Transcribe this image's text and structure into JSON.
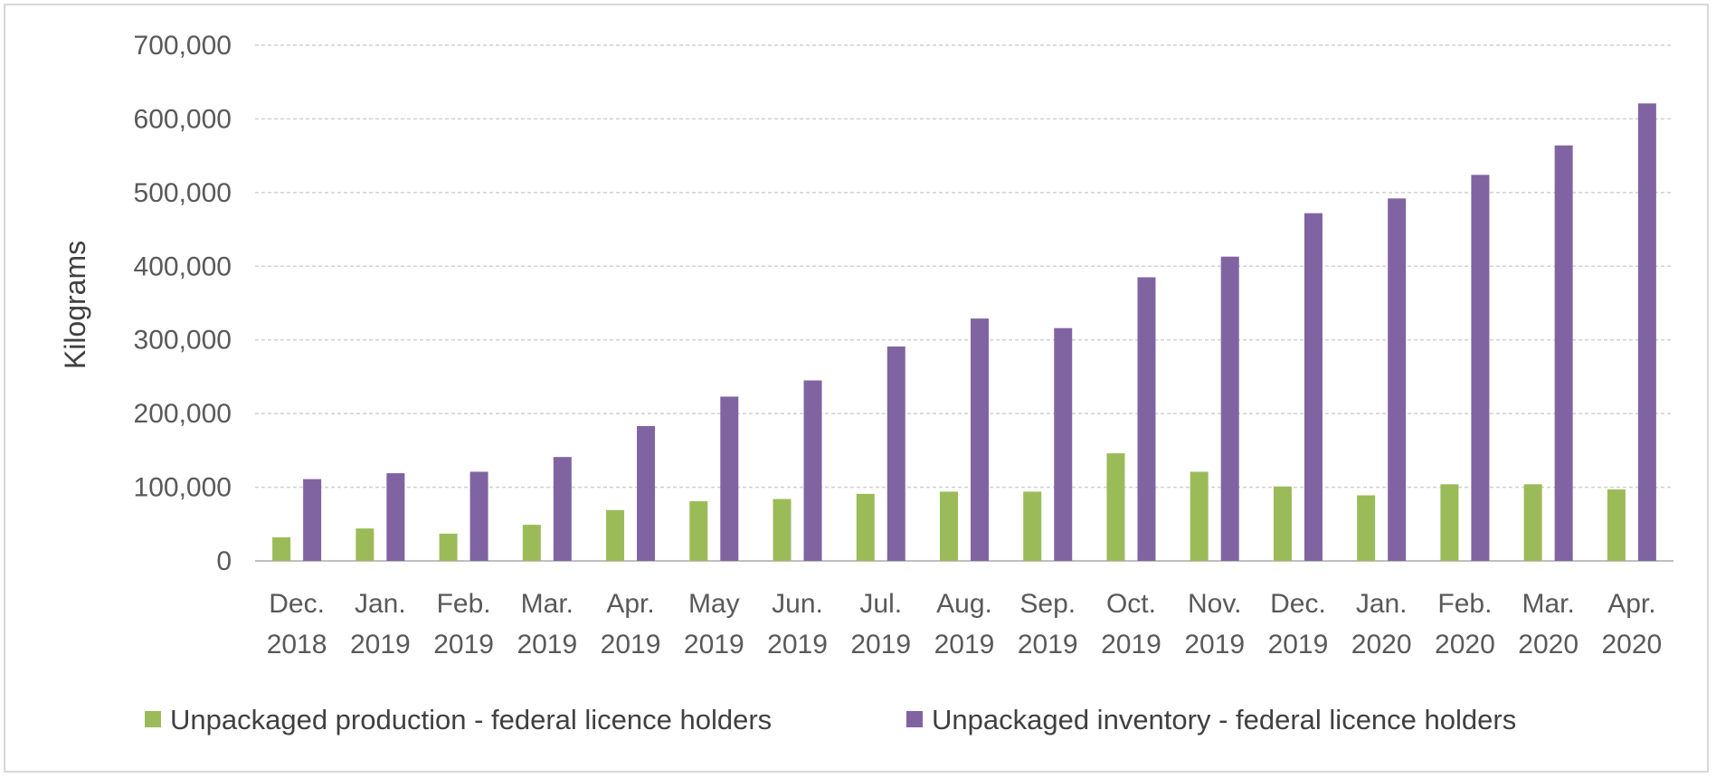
{
  "chart_data": {
    "type": "bar",
    "title": "",
    "xlabel": "",
    "ylabel": "Kilograms",
    "ylim": [
      0,
      700000
    ],
    "yticks": [
      0,
      100000,
      200000,
      300000,
      400000,
      500000,
      600000,
      700000
    ],
    "ytick_labels": [
      "0",
      "100,000",
      "200,000",
      "300,000",
      "400,000",
      "500,000",
      "600,000",
      "700,000"
    ],
    "grid": "horizontal dashed",
    "legend_position": "bottom",
    "categories": [
      [
        "Dec.",
        "2018"
      ],
      [
        "Jan.",
        "2019"
      ],
      [
        "Feb.",
        "2019"
      ],
      [
        "Mar.",
        "2019"
      ],
      [
        "Apr.",
        "2019"
      ],
      [
        "May",
        "2019"
      ],
      [
        "Jun.",
        "2019"
      ],
      [
        "Jul.",
        "2019"
      ],
      [
        "Aug.",
        "2019"
      ],
      [
        "Sep.",
        "2019"
      ],
      [
        "Oct.",
        "2019"
      ],
      [
        "Nov.",
        "2019"
      ],
      [
        "Dec.",
        "2019"
      ],
      [
        "Jan.",
        "2020"
      ],
      [
        "Feb.",
        "2020"
      ],
      [
        "Mar.",
        "2020"
      ],
      [
        "Apr.",
        "2020"
      ]
    ],
    "series": [
      {
        "name": "Unpackaged production - federal licence holders",
        "color": "#9bbb59",
        "values": [
          32000,
          44000,
          37000,
          49000,
          69000,
          81000,
          84000,
          91000,
          94000,
          94000,
          146000,
          121000,
          101000,
          89000,
          104000,
          104000,
          97000
        ]
      },
      {
        "name": "Unpackaged inventory - federal licence holders",
        "color": "#8064a2",
        "values": [
          111000,
          119000,
          121000,
          141000,
          183000,
          223000,
          245000,
          291000,
          329000,
          316000,
          385000,
          413000,
          472000,
          492000,
          524000,
          564000,
          621000
        ]
      }
    ]
  }
}
